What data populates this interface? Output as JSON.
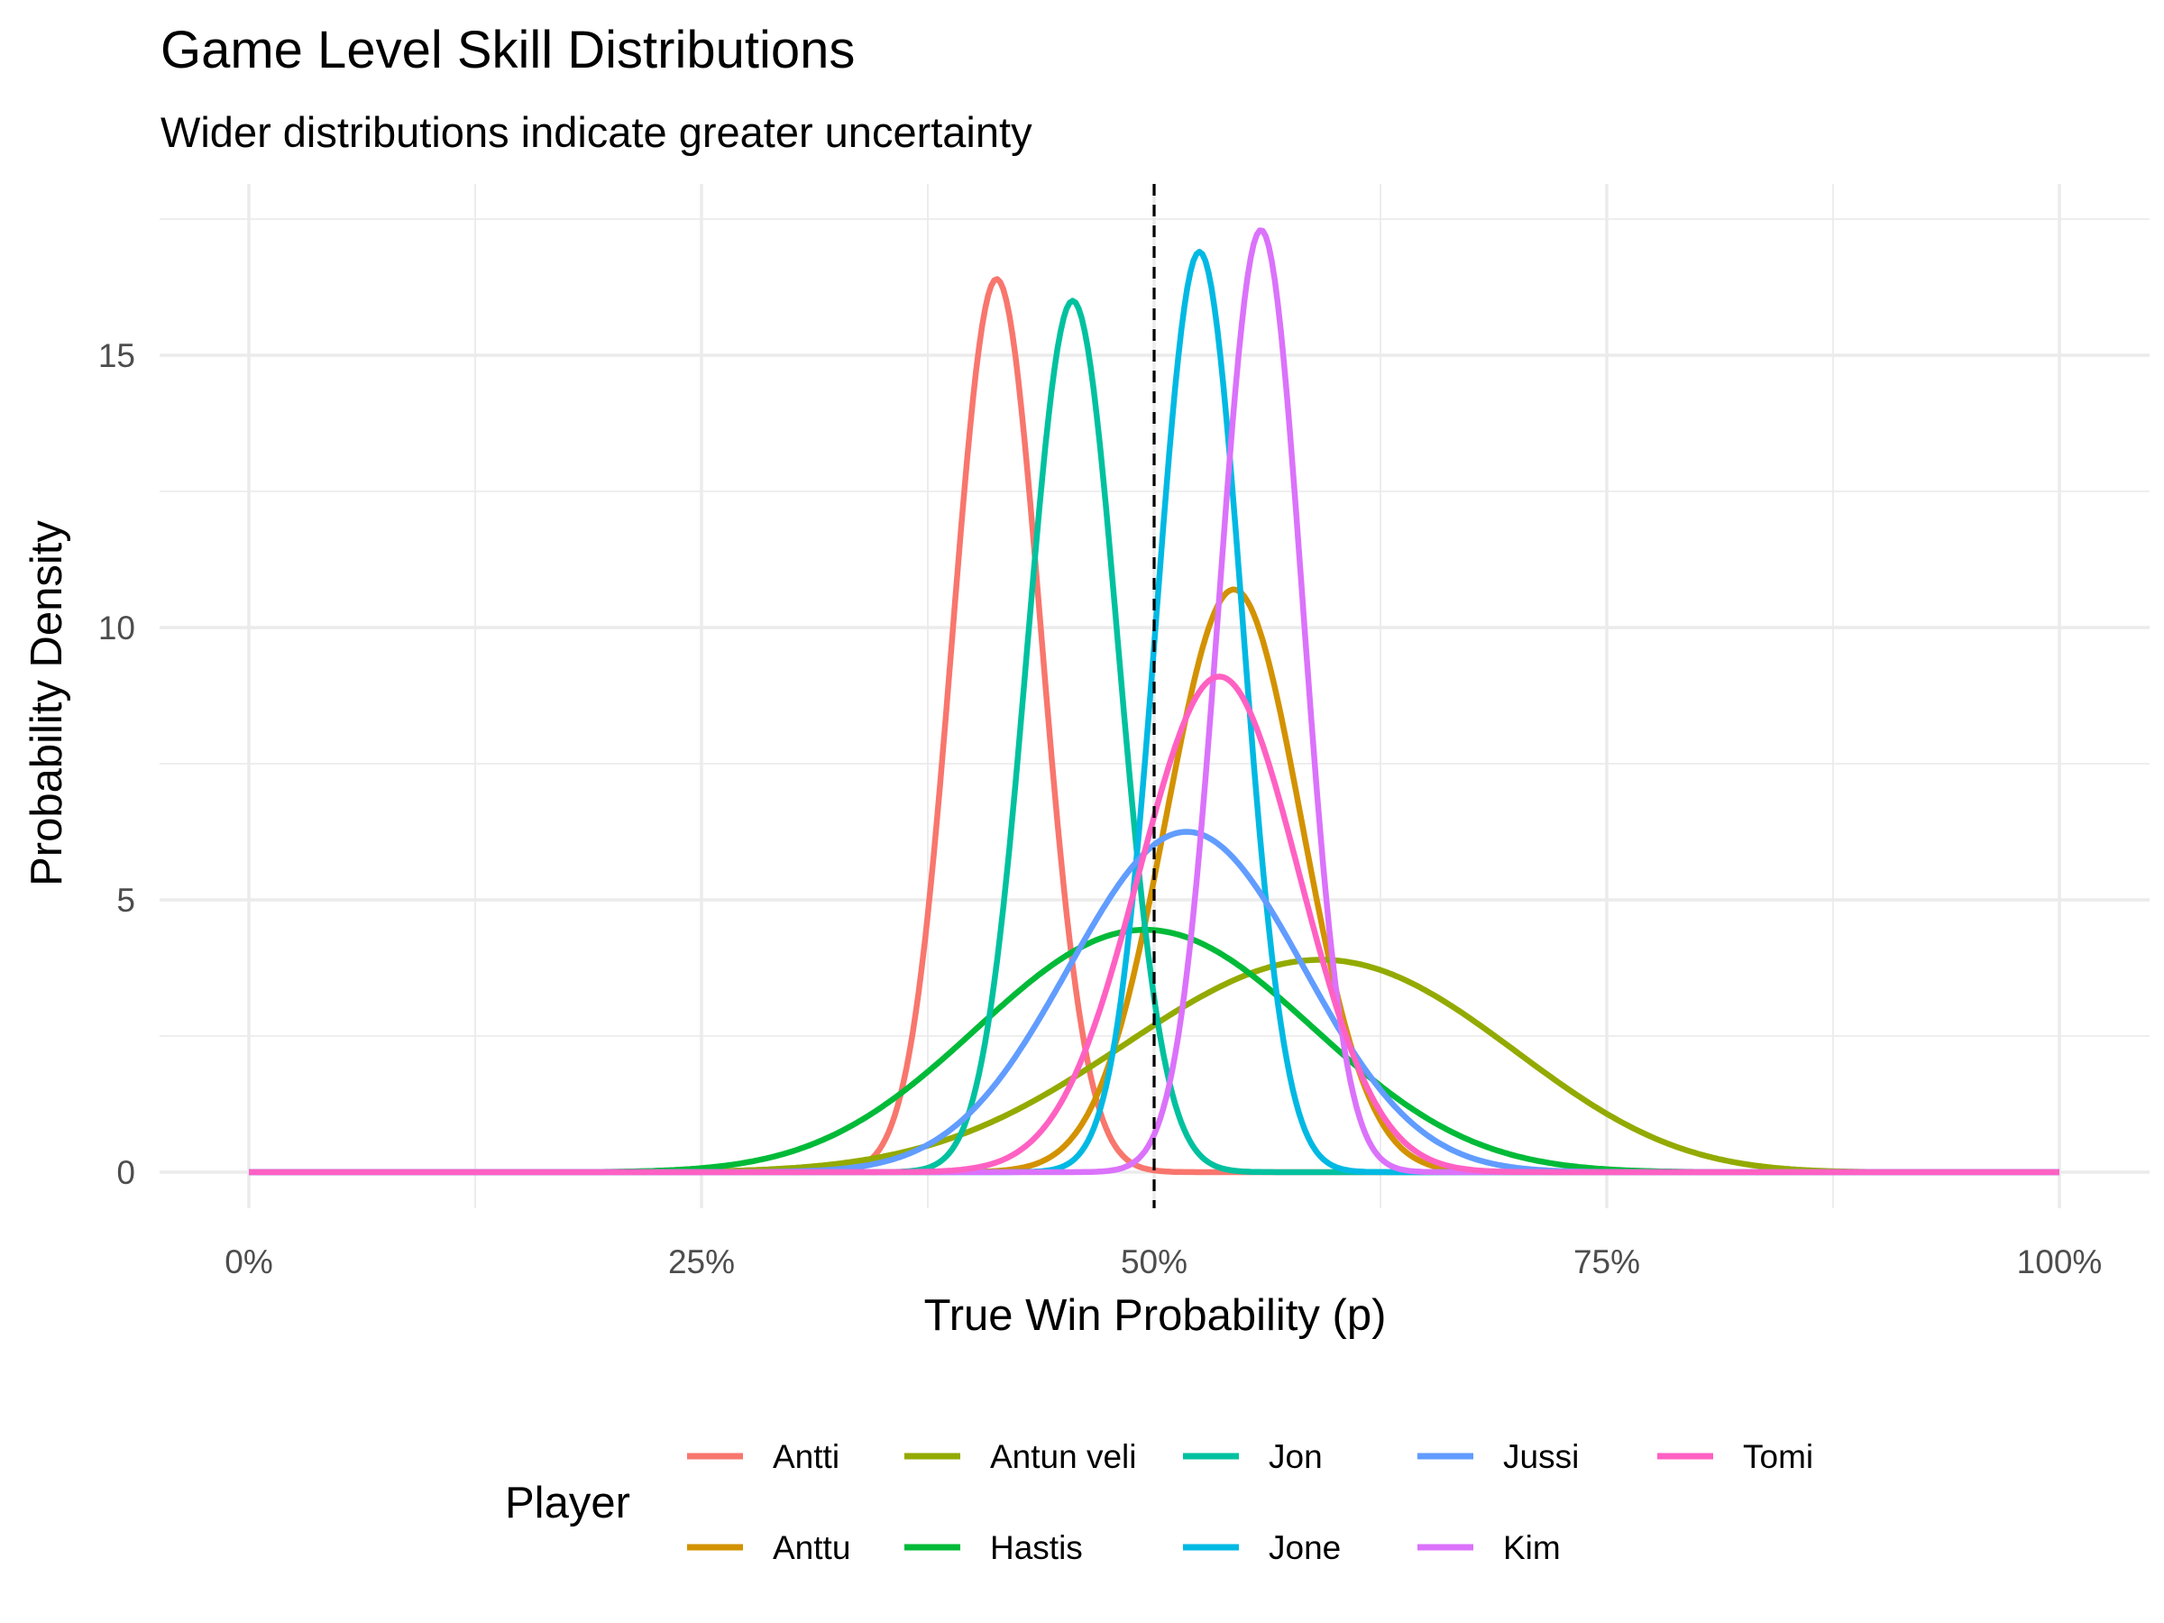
{
  "chart_data": {
    "type": "line",
    "title": "Game Level Skill Distributions",
    "subtitle": "Wider distributions indicate greater uncertainty",
    "xlabel": "True Win Probability (p)",
    "ylabel": "Probability Density",
    "xlim": [
      0,
      1
    ],
    "ylim": [
      -1.3,
      18.6
    ],
    "x_ticks": [
      0,
      0.25,
      0.5,
      0.75,
      1.0
    ],
    "x_tick_labels": [
      "0%",
      "25%",
      "50%",
      "75%",
      "100%"
    ],
    "y_ticks": [
      0,
      5,
      10,
      15
    ],
    "y_tick_labels": [
      "0",
      "5",
      "10",
      "15"
    ],
    "grid": true,
    "reference_line": {
      "x": 0.5,
      "style": "dashed",
      "color": "#000000"
    },
    "legend": {
      "title": "Player",
      "position": "bottom"
    },
    "series": [
      {
        "name": "Antti",
        "color": "#F8766D",
        "mode": 0.413,
        "peak_density": 16.4
      },
      {
        "name": "Anttu",
        "color": "#D39200",
        "mode": 0.544,
        "peak_density": 10.7
      },
      {
        "name": "Antun veli",
        "color": "#93AA00",
        "mode": 0.592,
        "peak_density": 3.9
      },
      {
        "name": "Hastis",
        "color": "#00BA38",
        "mode": 0.495,
        "peak_density": 4.45
      },
      {
        "name": "Jon",
        "color": "#00C19F",
        "mode": 0.455,
        "peak_density": 16.0
      },
      {
        "name": "Jone",
        "color": "#00B9E3",
        "mode": 0.525,
        "peak_density": 16.9
      },
      {
        "name": "Jussi",
        "color": "#619CFF",
        "mode": 0.518,
        "peak_density": 6.25
      },
      {
        "name": "Kim",
        "color": "#DB72FB",
        "mode": 0.559,
        "peak_density": 17.3
      },
      {
        "name": "Tomi",
        "color": "#FF61C3",
        "mode": 0.536,
        "peak_density": 9.1
      }
    ]
  }
}
